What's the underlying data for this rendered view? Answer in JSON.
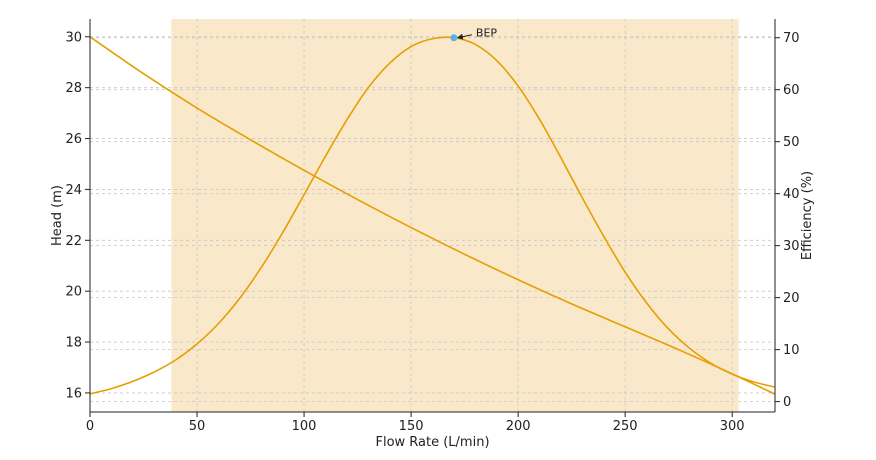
{
  "chart_data": {
    "type": "line",
    "title": "",
    "xlabel": "Flow Rate (L/min)",
    "ylabel_left": "Head (m)",
    "ylabel_right": "Efficiency (%)",
    "xlim": [
      0,
      320
    ],
    "ylim_left": [
      15.25,
      30.7
    ],
    "ylim_right": [
      -2,
      73.6
    ],
    "x_ticks": [
      0,
      50,
      100,
      150,
      200,
      250,
      300
    ],
    "y_ticks_left": [
      16,
      18,
      20,
      22,
      24,
      26,
      28,
      30
    ],
    "y_ticks_right": [
      0,
      10,
      20,
      30,
      40,
      50,
      60,
      70
    ],
    "grid": true,
    "line_color": "#E69F00",
    "shade_color": "#FAE8CB",
    "point_color": "#56B4E9",
    "operating_range": [
      38,
      303
    ],
    "series": [
      {
        "axis": "left",
        "x": [
          0,
          25,
          50,
          75,
          100,
          125,
          150,
          175,
          200,
          225,
          250,
          275,
          300,
          320
        ],
        "values": [
          30.0,
          28.55,
          27.2,
          25.95,
          24.75,
          23.6,
          22.5,
          21.45,
          20.45,
          19.5,
          18.6,
          17.7,
          16.75,
          15.95
        ]
      },
      {
        "axis": "right",
        "x": [
          0,
          10,
          20,
          30,
          40,
          50,
          60,
          70,
          80,
          90,
          100,
          110,
          120,
          130,
          140,
          150,
          160,
          170,
          180,
          190,
          200,
          210,
          220,
          230,
          240,
          250,
          260,
          270,
          280,
          290,
          300,
          310,
          320
        ],
        "values": [
          1.5,
          2.5,
          3.9,
          5.7,
          8.0,
          11.1,
          15.0,
          19.9,
          25.8,
          32.5,
          39.8,
          47.2,
          54.2,
          60.4,
          65.1,
          68.3,
          69.8,
          70.0,
          68.7,
          65.6,
          60.7,
          54.3,
          46.9,
          39.2,
          31.8,
          24.9,
          19.0,
          14.1,
          10.3,
          7.4,
          5.3,
          3.8,
          2.8
        ]
      }
    ],
    "annotations": [
      {
        "text": "BEP",
        "x": 170,
        "y": 70,
        "axis": "right"
      }
    ]
  }
}
